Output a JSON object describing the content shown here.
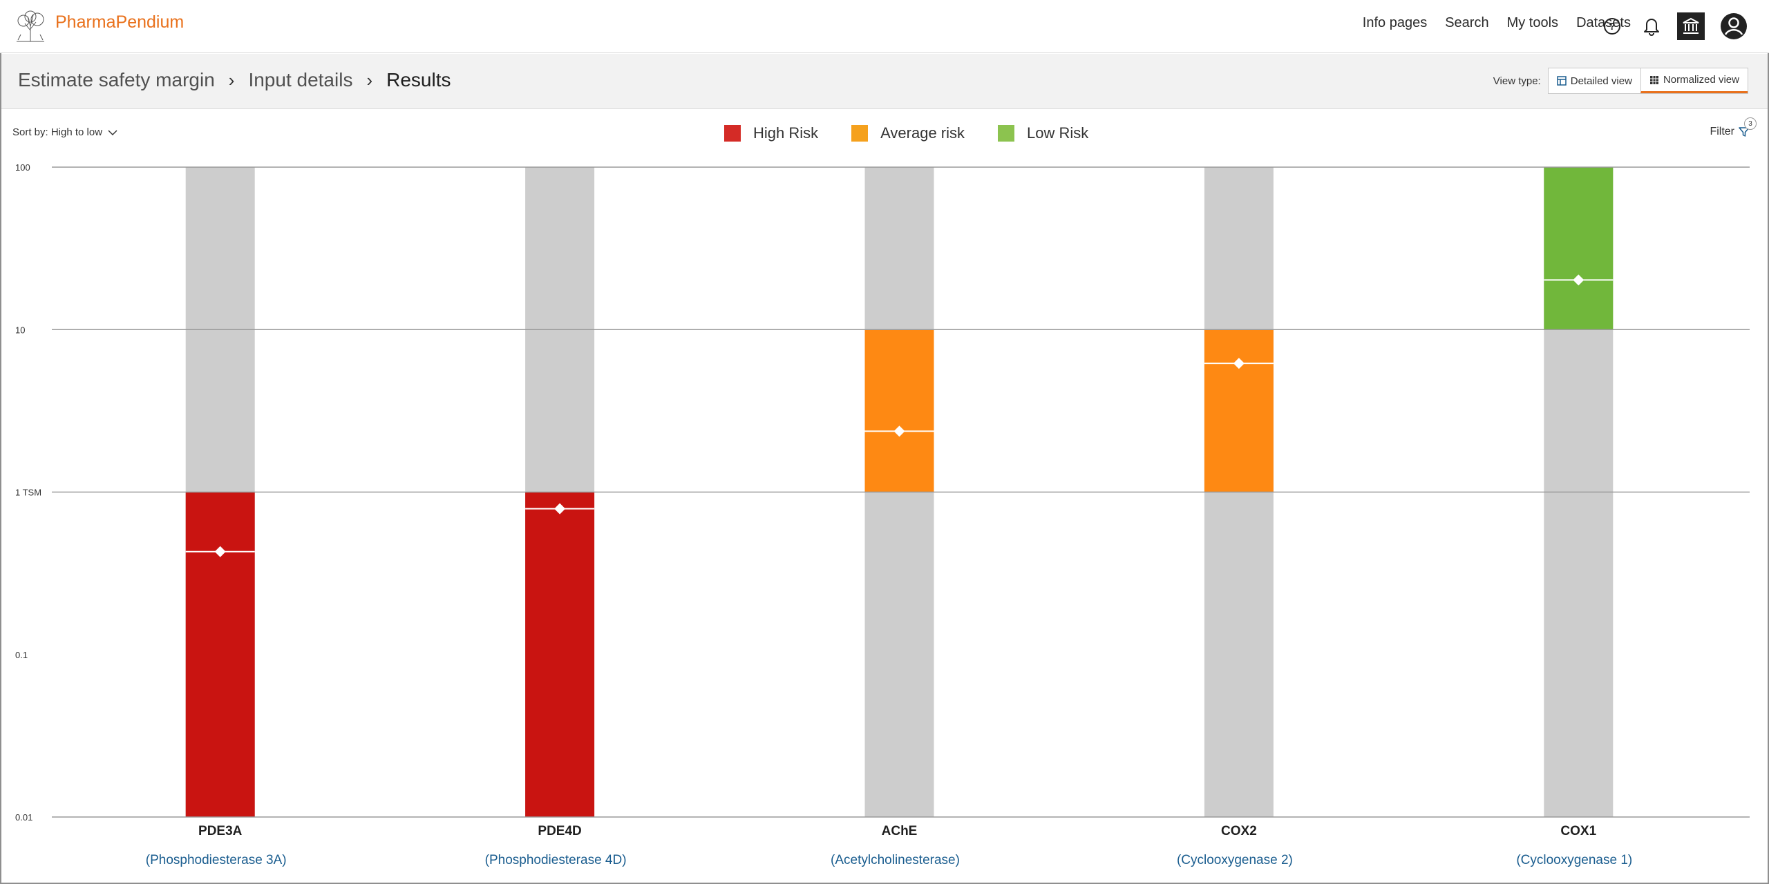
{
  "app": {
    "brand": "PharmaPendium",
    "nav": [
      "Info pages",
      "Search",
      "My tools",
      "Datasets"
    ],
    "icons": [
      "help-icon",
      "bell-icon",
      "institution-icon",
      "user-avatar-icon"
    ]
  },
  "breadcrumb": {
    "items": [
      "Estimate safety margin",
      "Input details",
      "Results"
    ]
  },
  "view_type": {
    "label": "View type:",
    "options": [
      "Detailed view",
      "Normalized view"
    ],
    "selected": "Normalized view"
  },
  "sort": {
    "label": "Sort by: High to low"
  },
  "filter": {
    "label": "Filter",
    "count": "3"
  },
  "legend": [
    {
      "label": "High Risk",
      "color": "#d42b26"
    },
    {
      "label": "Average risk",
      "color": "#f5a11d"
    },
    {
      "label": "Low Risk",
      "color": "#8cc34f"
    }
  ],
  "chart_data": {
    "type": "bar",
    "scale": "log",
    "ylim": [
      0.01,
      100
    ],
    "yticks": [
      {
        "value": 100,
        "label": "100"
      },
      {
        "value": 10,
        "label": "10"
      },
      {
        "value": 1,
        "label": "1 TSM"
      },
      {
        "value": 0.1,
        "label": "0.1"
      },
      {
        "value": 0.01,
        "label": "0.01"
      }
    ],
    "grid_at": [
      100,
      10,
      1
    ],
    "colors": {
      "high": "#c91411",
      "average": "#fe8913",
      "low": "#71b73b",
      "background": "#cdcdcd"
    },
    "categories": [
      {
        "name": "PDE3A",
        "description": "(Phosphodiesterase 3A)",
        "risk": "high",
        "range": [
          0.01,
          1
        ],
        "marker": 0.43
      },
      {
        "name": "PDE4D",
        "description": "(Phosphodiesterase 4D)",
        "risk": "high",
        "range": [
          0.01,
          1
        ],
        "marker": 0.79
      },
      {
        "name": "AChE",
        "description": "(Acetylcholinesterase)",
        "risk": "average",
        "range": [
          1,
          10
        ],
        "marker": 2.37
      },
      {
        "name": "COX2",
        "description": "(Cyclooxygenase 2)",
        "risk": "average",
        "range": [
          1,
          10
        ],
        "marker": 6.2
      },
      {
        "name": "COX1",
        "description": "(Cyclooxygenase 1)",
        "risk": "low",
        "range": [
          10,
          100
        ],
        "marker": 20.2
      }
    ]
  }
}
